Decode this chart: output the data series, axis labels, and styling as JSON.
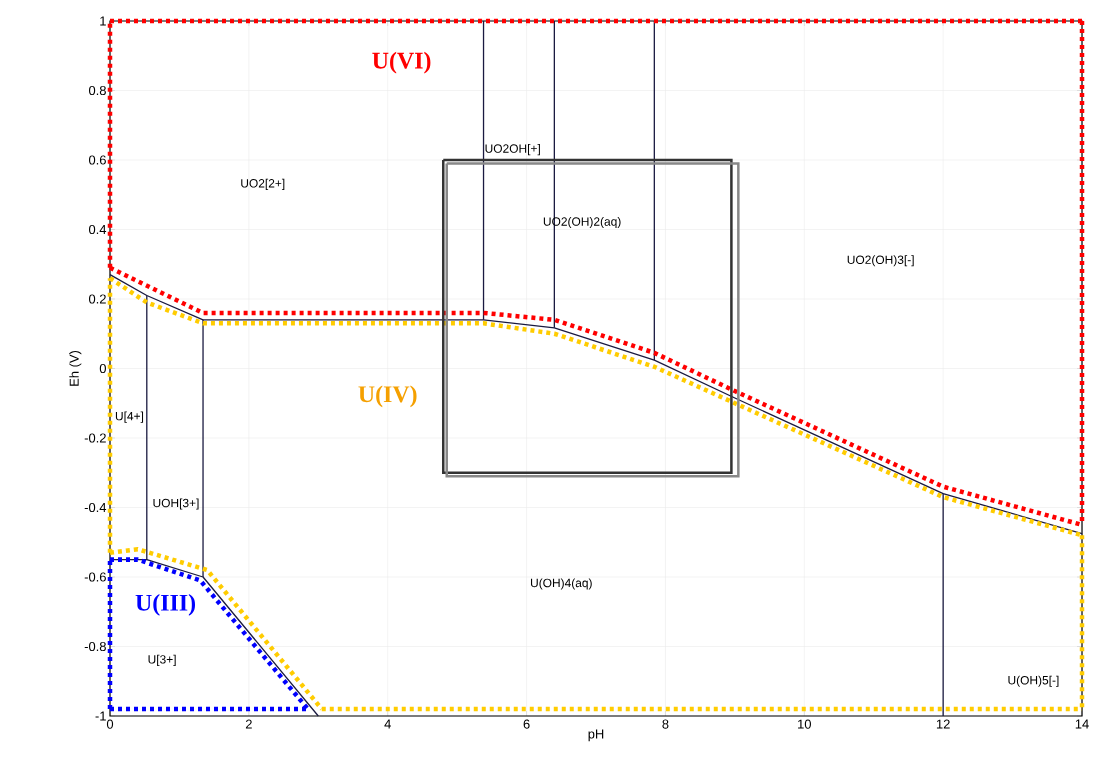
{
  "chart_data": {
    "type": "line",
    "xlabel": "pH",
    "ylabel": "Eh (V)",
    "xlim": [
      0,
      14
    ],
    "ylim": [
      -1,
      1
    ],
    "xticks": [
      0,
      2,
      4,
      6,
      8,
      10,
      12,
      14
    ],
    "yticks": [
      -1,
      -0.8,
      -0.6,
      -0.4,
      -0.2,
      0,
      0.2,
      0.4,
      0.6,
      0.8,
      1
    ],
    "grid": true,
    "marker": "none",
    "series": [
      {
        "color": "#1a1a40",
        "line_style": "solid",
        "x": [
          0,
          0.53,
          1.34,
          5.38,
          6.4,
          7.84,
          9,
          12,
          14
        ],
        "values": [
          0.27,
          0.21,
          0.14,
          0.14,
          0.117,
          0.024,
          -0.085,
          -0.36,
          -0.475
        ]
      },
      {
        "color": "#1a1a40",
        "line_style": "solid",
        "x": [
          0,
          0.53,
          1.34,
          3.0
        ],
        "values": [
          -0.55,
          -0.55,
          -0.6,
          -1
        ]
      },
      {
        "color": "#1a1a40",
        "line_style": "solid",
        "x": [
          0.53,
          0.53
        ],
        "values": [
          0.21,
          -0.55
        ]
      },
      {
        "color": "#1a1a40",
        "line_style": "solid",
        "x": [
          1.34,
          1.34
        ],
        "values": [
          0.14,
          -0.6
        ]
      },
      {
        "color": "#1a1a40",
        "line_style": "solid",
        "x": [
          5.38,
          5.38
        ],
        "values": [
          1,
          0.14
        ]
      },
      {
        "color": "#1a1a40",
        "line_style": "solid",
        "x": [
          6.4,
          6.4
        ],
        "values": [
          1,
          0.117
        ]
      },
      {
        "color": "#1a1a40",
        "line_style": "solid",
        "x": [
          7.84,
          7.84
        ],
        "values": [
          1,
          0.024
        ]
      },
      {
        "color": "#1a1a40",
        "line_style": "solid",
        "x": [
          12,
          12
        ],
        "values": [
          -0.36,
          -1
        ]
      },
      {
        "color": "#ff0000",
        "line_style": "dotted",
        "x": [
          0,
          14
        ],
        "values": [
          1,
          1
        ]
      },
      {
        "color": "#ff0000",
        "line_style": "dotted",
        "x": [
          14,
          14
        ],
        "values": [
          1,
          -0.45
        ]
      },
      {
        "color": "#ff0000",
        "line_style": "dotted",
        "x": [
          0,
          1.34,
          5.38,
          6.4,
          7.84,
          9,
          12,
          14
        ],
        "values": [
          0.29,
          0.16,
          0.16,
          0.14,
          0.045,
          -0.065,
          -0.34,
          -0.45
        ]
      },
      {
        "color": "#ff0000",
        "line_style": "dotted",
        "x": [
          0,
          0
        ],
        "values": [
          0.29,
          1
        ]
      },
      {
        "color": "#ffcc00",
        "line_style": "dotted",
        "x": [
          0,
          0.53,
          1.34,
          5.38,
          6.4,
          7.84,
          9,
          12,
          14
        ],
        "values": [
          0.26,
          0.19,
          0.13,
          0.13,
          0.1,
          0.005,
          -0.1,
          -0.37,
          -0.48
        ]
      },
      {
        "color": "#ffcc00",
        "line_style": "dotted",
        "x": [
          14,
          14
        ],
        "values": [
          -0.48,
          -0.98
        ]
      },
      {
        "color": "#ffcc00",
        "line_style": "dotted",
        "x": [
          3.05,
          14
        ],
        "values": [
          -0.98,
          -0.98
        ]
      },
      {
        "color": "#ffcc00",
        "line_style": "dotted",
        "x": [
          0,
          0.4,
          1.4,
          3.05
        ],
        "values": [
          -0.53,
          -0.52,
          -0.58,
          -0.98
        ]
      },
      {
        "color": "#ffcc00",
        "line_style": "dotted",
        "x": [
          0,
          0
        ],
        "values": [
          -0.53,
          0.26
        ]
      },
      {
        "color": "#0000ff",
        "line_style": "dotted",
        "x": [
          0,
          0.4,
          1.3,
          2.85
        ],
        "values": [
          -0.55,
          -0.55,
          -0.61,
          -0.98
        ]
      },
      {
        "color": "#0000ff",
        "line_style": "dotted",
        "x": [
          0,
          2.85
        ],
        "values": [
          -0.98,
          -0.98
        ]
      },
      {
        "color": "#0000ff",
        "line_style": "dotted",
        "x": [
          0,
          0
        ],
        "values": [
          -0.98,
          -0.55
        ]
      }
    ],
    "annotations": [
      "UO2[2+]",
      "UO2OH[+]",
      "UO2(OH)2(aq)",
      "UO2(OH)3[-]",
      "U[4+]",
      "UOH[3+]",
      "U(OH)4(aq)",
      "U[3+]",
      "U(OH)5[-]",
      "U(VI)",
      "U(IV)",
      "U(III)"
    ]
  }
}
